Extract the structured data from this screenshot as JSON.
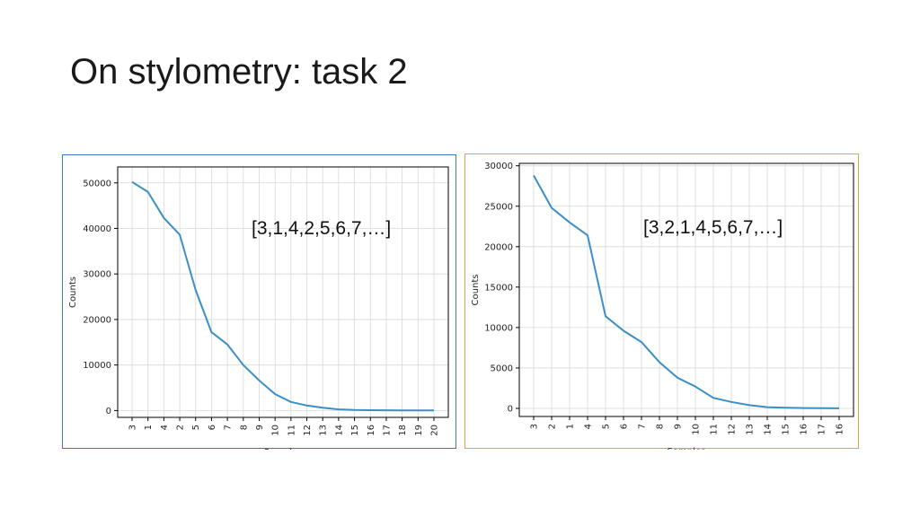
{
  "slide": {
    "title": "On stylometry: task 2"
  },
  "chart_data": [
    {
      "type": "line",
      "annotation": "[3,1,4,2,5,6,7,…]",
      "xlabel": "Samples",
      "ylabel": "Counts",
      "categories": [
        "3",
        "1",
        "4",
        "2",
        "5",
        "6",
        "7",
        "8",
        "9",
        "10",
        "11",
        "12",
        "13",
        "14",
        "15",
        "16",
        "17",
        "18",
        "19",
        "20"
      ],
      "values": [
        50200,
        48000,
        42300,
        38600,
        26500,
        17200,
        14500,
        10000,
        6600,
        3600,
        1900,
        1100,
        600,
        250,
        120,
        80,
        50,
        40,
        30,
        20
      ],
      "ylim": [
        -1500,
        53500
      ],
      "yticks": [
        0,
        10000,
        20000,
        30000,
        40000,
        50000
      ],
      "ytick_labels": [
        "0",
        "10000",
        "20000",
        "30000",
        "40000",
        "50000"
      ],
      "grid": true,
      "line_color": "#3b8fc4",
      "frame_color": "#4472c4"
    },
    {
      "type": "line",
      "annotation": "[3,2,1,4,5,6,7,…]",
      "xlabel": "Samples",
      "ylabel": "Counts",
      "categories": [
        "3",
        "2",
        "1",
        "4",
        "5",
        "6",
        "7",
        "8",
        "9",
        "10",
        "11",
        "12",
        "13",
        "14",
        "15",
        "16",
        "17",
        "16"
      ],
      "values": [
        28800,
        24800,
        23000,
        21400,
        11400,
        9600,
        8200,
        5700,
        3800,
        2700,
        1300,
        800,
        400,
        150,
        80,
        40,
        20,
        10
      ],
      "ylim": [
        -1000,
        30300
      ],
      "yticks": [
        0,
        5000,
        10000,
        15000,
        20000,
        25000,
        30000
      ],
      "ytick_labels": [
        "0",
        "5000",
        "10000",
        "15000",
        "20000",
        "25000",
        "30000"
      ],
      "grid": true,
      "line_color": "#3b8fc4",
      "frame_color": "#ed9c4f"
    }
  ]
}
